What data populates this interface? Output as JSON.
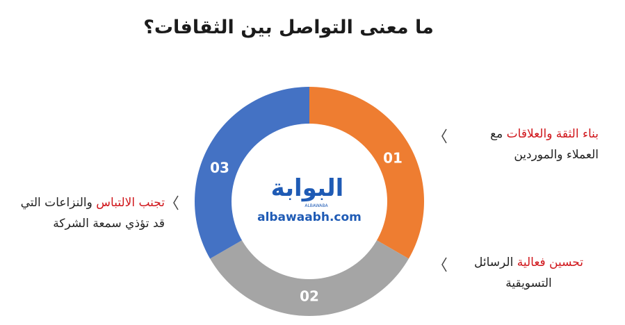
{
  "title": "ما معنى التواصل بين الثقافات؟",
  "segments": [
    {
      "label": "01"
    },
    {
      "label": "02"
    },
    {
      "label": "03"
    }
  ],
  "items": [
    {
      "highlight": "بناء الثقة والعلاقات",
      "rest": "مع",
      "line2": "العملاء والموردين"
    },
    {
      "highlight": "تحسين فعالية",
      "rest": "الرسائل",
      "line2": "التسويقية"
    },
    {
      "highlight": "تجنب الالتباس",
      "rest": "والنزاعات التي",
      "line2": "قد تؤذي سمعة الشركة"
    }
  ],
  "logo": {
    "arabic": "البوابة",
    "latin": "ALBAWABA",
    "site": "albawaabh.com"
  }
}
